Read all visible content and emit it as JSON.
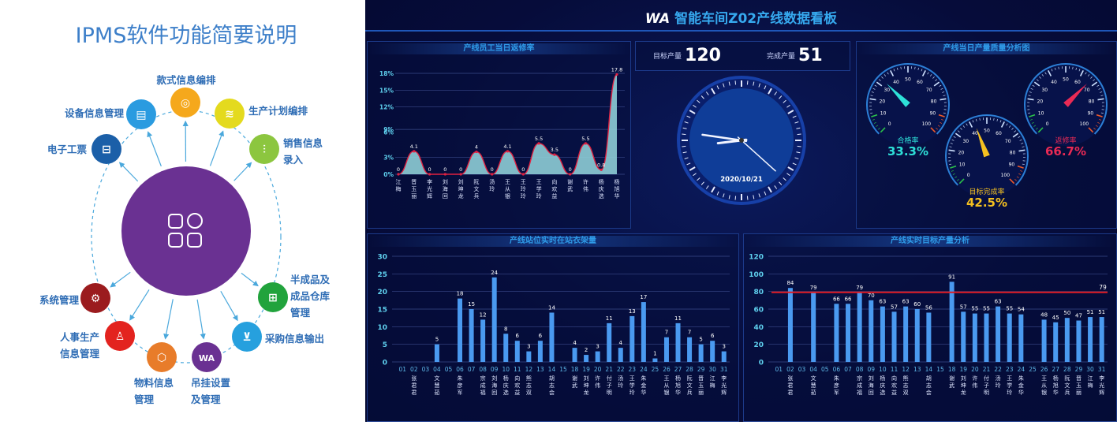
{
  "left": {
    "title": "IPMS软件功能简要说明",
    "center_icon": "apps-grid-icon",
    "center_color": "#6a3192",
    "modules": [
      {
        "lines": [
          "款式信息编排"
        ],
        "icon": "ring-icon",
        "color": "#f5a81c"
      },
      {
        "lines": [
          "设备信息管理"
        ],
        "icon": "card-icon",
        "color": "#2a9be0"
      },
      {
        "lines": [
          "生产计划编排"
        ],
        "icon": "layers-icon",
        "color": "#e4da1e"
      },
      {
        "lines": [
          "电子工票"
        ],
        "icon": "ticket-icon",
        "color": "#1b5fa8"
      },
      {
        "lines": [
          "销售信息",
          "录入"
        ],
        "icon": "chart-up-icon",
        "color": "#8cc63f"
      },
      {
        "lines": [
          "系统管理"
        ],
        "icon": "gear-icon",
        "color": "#9b1b1e"
      },
      {
        "lines": [
          "人事生产",
          "信息管理"
        ],
        "icon": "user-list-icon",
        "color": "#e3231f"
      },
      {
        "lines": [
          "物料信息",
          "管理"
        ],
        "icon": "box-icon",
        "color": "#e87c2a"
      },
      {
        "lines": [
          "吊挂设置",
          "及管理"
        ],
        "icon": "wa-logo-icon",
        "color": "#6a3192"
      },
      {
        "lines": [
          "采购信息输出"
        ],
        "icon": "cart-icon",
        "color": "#26a0de"
      },
      {
        "lines": [
          "半成品及",
          "成品仓库",
          "管理"
        ],
        "icon": "shirt-icon",
        "color": "#21a33c"
      }
    ]
  },
  "dashboard": {
    "title": "智能车间Z02产线数据看板",
    "logo": "WA",
    "target_label": "目标产量",
    "target_value": "120",
    "done_label": "完成产量",
    "done_value": "51",
    "clock_date": "2020/10/21",
    "clock_time": {
      "hour": 8,
      "minute": 46,
      "second": 22
    },
    "gauge_panel_title": "产线当日产量质量分析图",
    "gauges": [
      {
        "label": "合格率",
        "value": "33.3%",
        "percent": 33.3,
        "color": "#2ee0d8"
      },
      {
        "label": "目标完成率",
        "value": "42.5%",
        "percent": 42.5,
        "color": "#f4c020"
      },
      {
        "label": "返修率",
        "value": "66.7%",
        "percent": 66.7,
        "color": "#ea2a55"
      }
    ]
  },
  "chart_data": [
    {
      "type": "area",
      "title": "产线员工当日返修率",
      "categories": [
        "江梅",
        "晋玉丽",
        "李光辉",
        "刘海回",
        "刘坤龙",
        "阮文兵",
        "汤玲",
        "王从银",
        "王玲玲",
        "王学玲",
        "向欢益",
        "谢武",
        "许伟",
        "杨庆选",
        "杨旭华"
      ],
      "values": [
        0,
        4.1,
        0,
        0,
        0,
        4,
        0,
        4.1,
        0,
        5.5,
        3.5,
        0,
        5.5,
        0.8,
        17.8
      ],
      "value_labels": [
        "0",
        "4.1",
        "0",
        "0",
        "0",
        "4",
        "0",
        "4.1",
        "0",
        "5.5",
        "3.5",
        "0",
        "5.5",
        "0.8",
        "17.8"
      ],
      "ytick_labels": [
        "0%",
        "3%",
        "6%",
        "9%",
        "12%",
        "15%",
        "18%"
      ],
      "ylim": [
        0,
        18
      ],
      "grid": true,
      "colors": {
        "fill": "#8ecdd6",
        "line": "#e02040"
      }
    },
    {
      "type": "bar",
      "title": "产线站位实时在站衣架量",
      "categories": [
        "01",
        "02",
        "03",
        "04",
        "05",
        "06",
        "07",
        "08",
        "09",
        "10",
        "11",
        "12",
        "13",
        "14",
        "15",
        "18",
        "19",
        "20",
        "21",
        "22",
        "23",
        "24",
        "25",
        "26",
        "27",
        "28",
        "29",
        "30",
        "31"
      ],
      "names": [
        "",
        "张君君",
        "",
        "文慧茹",
        "",
        "朱彦军",
        "",
        "宗成福",
        "刘海回",
        "杨庆选",
        "向欢益",
        "熊志双",
        "",
        "胡志会",
        "",
        "谢武",
        "刘坤龙",
        "许伟",
        "付子明",
        "汤玲",
        "王学玲",
        "朱金华",
        "",
        "王从银",
        "杨旭华",
        "阮文兵",
        "晋玉丽",
        "江梅",
        "李光辉"
      ],
      "values": [
        0,
        0,
        0,
        5,
        0,
        18,
        15,
        12,
        24,
        8,
        6,
        3,
        6,
        14,
        0,
        4,
        2,
        3,
        11,
        4,
        13,
        17,
        1,
        7,
        11,
        7,
        5,
        6,
        3
      ],
      "yticks": [
        0,
        5,
        10,
        15,
        20,
        25,
        30
      ],
      "ylim": [
        0,
        30
      ],
      "grid": true,
      "colors": {
        "bar": "#4a9af0"
      }
    },
    {
      "type": "bar",
      "title": "产线实时目标产量分析",
      "categories": [
        "01",
        "02",
        "03",
        "04",
        "05",
        "06",
        "07",
        "08",
        "09",
        "10",
        "11",
        "12",
        "13",
        "14",
        "15",
        "18",
        "19",
        "20",
        "21",
        "22",
        "23",
        "24",
        "25",
        "26",
        "27",
        "28",
        "29",
        "30",
        "31"
      ],
      "names": [
        "",
        "张君君",
        "",
        "文慧茹",
        "",
        "朱彦军",
        "",
        "宗成福",
        "刘海回",
        "杨庆选",
        "向欢益",
        "熊志双",
        "",
        "胡志会",
        "",
        "谢武",
        "刘坤龙",
        "许伟",
        "付子明",
        "汤玲",
        "王学玲",
        "朱金华",
        "",
        "王从银",
        "杨旭华",
        "阮文兵",
        "晋玉丽",
        "江梅",
        "李光辉"
      ],
      "values": [
        0,
        84,
        0,
        79,
        0,
        66,
        66,
        79,
        70,
        63,
        57,
        63,
        60,
        56,
        0,
        91,
        57,
        55,
        55,
        63,
        55,
        54,
        0,
        48,
        45,
        50,
        47,
        51,
        51
      ],
      "target": 79,
      "target_label": "79",
      "yticks": [
        0,
        20,
        40,
        60,
        80,
        100,
        120
      ],
      "ylim": [
        0,
        120
      ],
      "grid": true,
      "colors": {
        "bar": "#4a9af0",
        "target": "#e01c24"
      }
    }
  ]
}
